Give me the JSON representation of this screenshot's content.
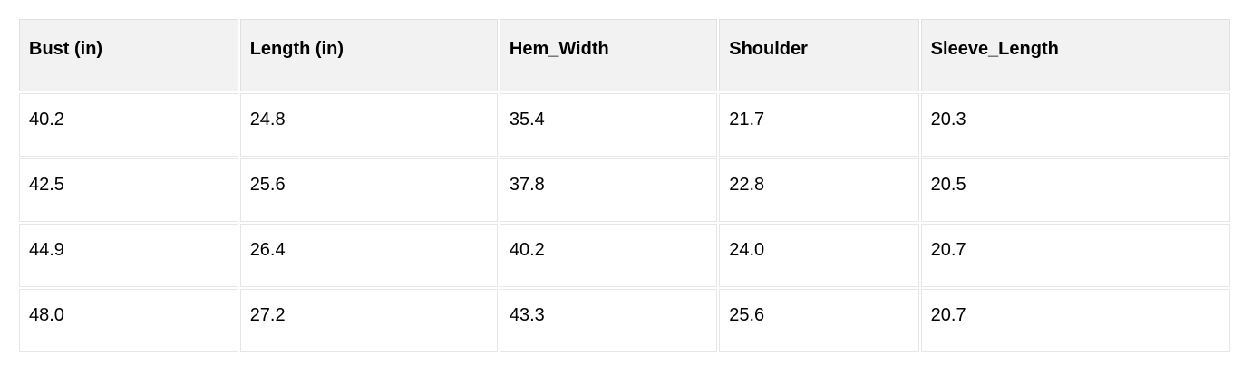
{
  "chart_data": {
    "type": "table",
    "columns": [
      "Bust (in)",
      "Length (in)",
      "Hem_Width",
      "Shoulder",
      "Sleeve_Length"
    ],
    "rows": [
      [
        "40.2",
        "24.8",
        "35.4",
        "21.7",
        "20.3"
      ],
      [
        "42.5",
        "25.6",
        "37.8",
        "22.8",
        "20.5"
      ],
      [
        "44.9",
        "26.4",
        "40.2",
        "24.0",
        "20.7"
      ],
      [
        "48.0",
        "27.2",
        "43.3",
        "25.6",
        "20.7"
      ]
    ]
  },
  "colors": {
    "header_bg": "#f2f2f2",
    "cell_border": "#e0e0e0",
    "text": "#000000",
    "row_bg": "#ffffff",
    "page_bg": "#ffffff"
  }
}
